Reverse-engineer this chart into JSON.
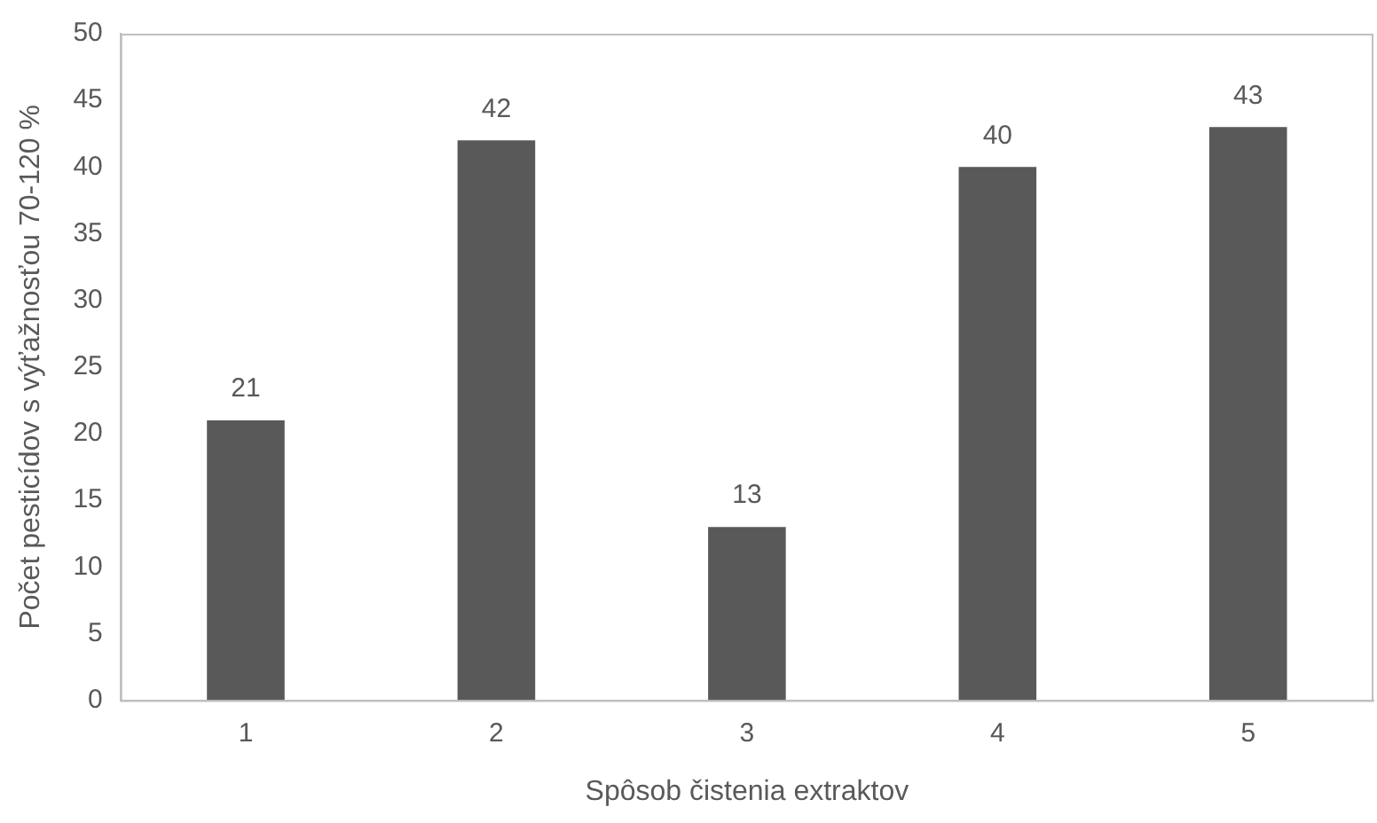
{
  "chart_data": {
    "type": "bar",
    "xlabel": "Spôsob čistenia extraktov",
    "ylabel": "Počet pesticídov s výťažnosťou 70-120 %",
    "categories": [
      "1",
      "2",
      "3",
      "4",
      "5"
    ],
    "values": [
      21,
      42,
      13,
      40,
      43
    ],
    "color": "#595959",
    "ylim": [
      0,
      50
    ],
    "yticks": [
      0,
      5,
      10,
      15,
      20,
      25,
      30,
      35,
      40,
      45,
      50
    ],
    "grid": false,
    "data_labels": true
  }
}
